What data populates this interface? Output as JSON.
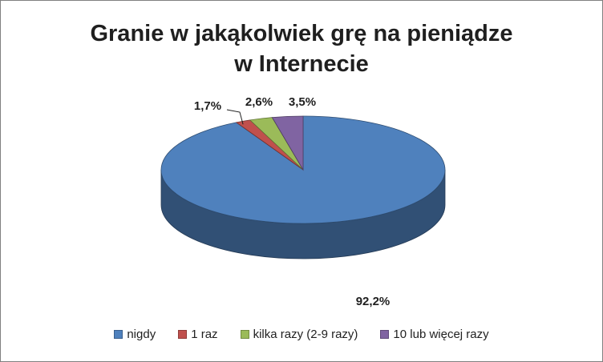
{
  "chart_data": {
    "type": "pie",
    "title": [
      "Granie w jakąkolwiek grę na pieniądze",
      "w Internecie"
    ],
    "categories": [
      "nigdy",
      "1 raz",
      "kilka razy (2-9 razy)",
      "10 lub więcej razy"
    ],
    "values": [
      92.2,
      1.7,
      2.6,
      3.5
    ],
    "data_labels": [
      "92,2%",
      "1,7%",
      "2,6%",
      "3,5%"
    ],
    "colors": [
      "#4F81BD",
      "#C0504D",
      "#9BBB59",
      "#8064A2"
    ],
    "legend_position": "bottom",
    "style": "3d-pie"
  }
}
